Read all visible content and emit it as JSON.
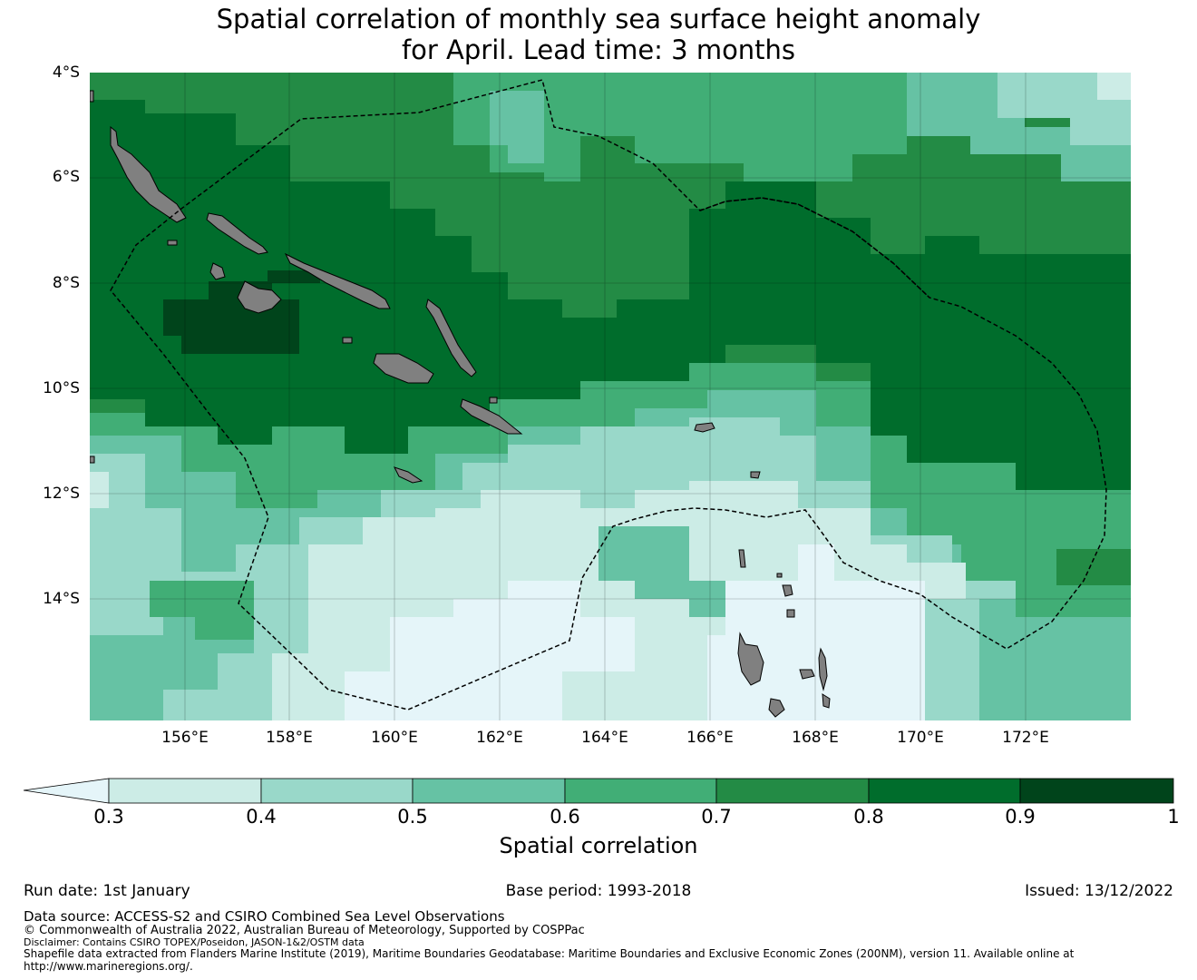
{
  "title": {
    "line1": "Spatial correlation of monthly sea surface height anomaly",
    "line2": "for April. Lead time: 3 months"
  },
  "map": {
    "lat_labels": [
      "4°S",
      "6°S",
      "8°S",
      "10°S",
      "12°S",
      "14°S"
    ],
    "lon_labels": [
      "156°E",
      "158°E",
      "160°E",
      "162°E",
      "164°E",
      "166°E",
      "168°E",
      "170°E",
      "172°E"
    ],
    "land_color": "#808080",
    "boundary_style": "dashed"
  },
  "colorbar": {
    "label": "Spatial correlation",
    "ticks": [
      "0.3",
      "0.4",
      "0.5",
      "0.6",
      "0.7",
      "0.8",
      "0.9",
      "1"
    ],
    "colors": [
      "#e5f5f9",
      "#ccece6",
      "#99d8c9",
      "#66c2a4",
      "#41ae76",
      "#238b45",
      "#006d2c",
      "#00441b"
    ]
  },
  "footer": {
    "run_date": "Run date: 1st January",
    "base_period": "Base period: 1993-2018",
    "issued": "Issued: 13/12/2022",
    "data_source": "Data source: ACCESS-S2 and CSIRO Combined Sea Level Observations",
    "copyright": "© Commonwealth of Australia 2022, Australian Bureau of Meteorology, Supported by COSPPac",
    "disclaimer": "Disclaimer: Contains CSIRO TOPEX/Poseidon, JASON-1&2/OSTM data",
    "shapefile1": "Shapefile data extracted from Flanders Marine Institute (2019), Maritime Boundaries Geodatabase: Maritime Boundaries and Exclusive Economic Zones (200NM), version 11. Available online at",
    "shapefile2": "http://www.marineregions.org/."
  }
}
